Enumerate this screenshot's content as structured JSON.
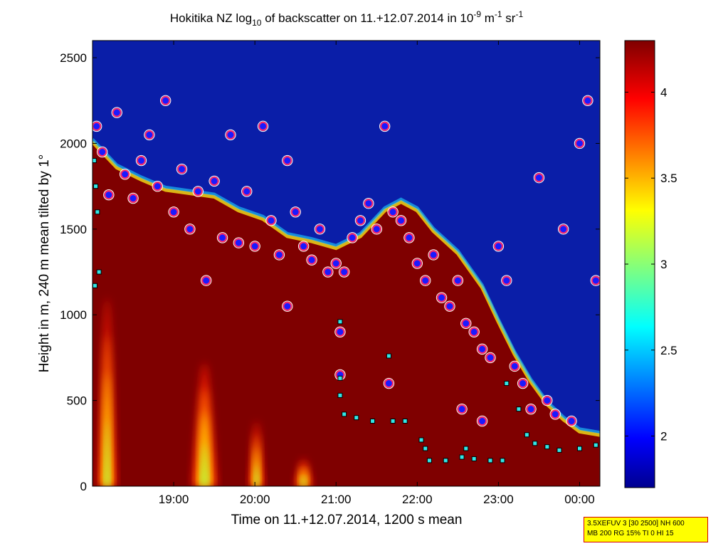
{
  "chart_data": {
    "type": "heatmap",
    "title_parts": {
      "pre": "Hokitika NZ log",
      "sub": "10",
      "mid": " of backscatter on 11.+12.07.2014 in 10",
      "sup1": "-9",
      "mid2": " m",
      "sup2": "-1",
      "mid3": " sr",
      "sup3": "-1"
    },
    "xlabel": "Time on 11.+12.07.2014, 1200 s mean",
    "ylabel": "Height in m, 240 m mean tilted by 1°",
    "x_unit": "hours since 11.07.2014 00:00",
    "xlim": [
      18.0,
      24.25
    ],
    "ylim": [
      0,
      2600
    ],
    "x_ticks": [
      {
        "x": 19.0,
        "label": "19:00"
      },
      {
        "x": 20.0,
        "label": "20:00"
      },
      {
        "x": 21.0,
        "label": "21:00"
      },
      {
        "x": 22.0,
        "label": "22:00"
      },
      {
        "x": 23.0,
        "label": "23:00"
      },
      {
        "x": 24.0,
        "label": "00:00"
      }
    ],
    "y_ticks": [
      {
        "y": 0,
        "label": "0"
      },
      {
        "y": 500,
        "label": "500"
      },
      {
        "y": 1000,
        "label": "1000"
      },
      {
        "y": 1500,
        "label": "1500"
      },
      {
        "y": 2000,
        "label": "2000"
      },
      {
        "y": 2500,
        "label": "2500"
      }
    ],
    "colorbar": {
      "min": 1.7,
      "max": 4.3,
      "ticks": [
        {
          "v": 2,
          "label": "2"
        },
        {
          "v": 2.5,
          "label": "2.5"
        },
        {
          "v": 3,
          "label": "3"
        },
        {
          "v": 3.5,
          "label": "3.5"
        },
        {
          "v": 4,
          "label": "4"
        }
      ],
      "colormap": "jet"
    },
    "cloud_top": [
      [
        18.0,
        2000
      ],
      [
        18.3,
        1850
      ],
      [
        18.6,
        1780
      ],
      [
        18.9,
        1720
      ],
      [
        19.2,
        1700
      ],
      [
        19.5,
        1680
      ],
      [
        19.8,
        1600
      ],
      [
        20.1,
        1550
      ],
      [
        20.4,
        1450
      ],
      [
        20.7,
        1420
      ],
      [
        21.0,
        1380
      ],
      [
        21.3,
        1450
      ],
      [
        21.6,
        1600
      ],
      [
        21.8,
        1650
      ],
      [
        22.0,
        1600
      ],
      [
        22.2,
        1480
      ],
      [
        22.5,
        1350
      ],
      [
        22.8,
        1150
      ],
      [
        23.0,
        950
      ],
      [
        23.2,
        760
      ],
      [
        23.4,
        600
      ],
      [
        23.6,
        470
      ],
      [
        23.8,
        380
      ],
      [
        24.0,
        310
      ],
      [
        24.25,
        290
      ]
    ],
    "aerosol_plumes": [
      {
        "x": 18.18,
        "peak": 1100,
        "width": 0.12
      },
      {
        "x": 19.38,
        "peak": 720,
        "width": 0.16
      },
      {
        "x": 20.02,
        "peak": 380,
        "width": 0.1
      },
      {
        "x": 20.6,
        "peak": 160,
        "width": 0.12
      }
    ],
    "series": [
      {
        "marker": "circle",
        "points": [
          [
            18.05,
            2100
          ],
          [
            18.12,
            1950
          ],
          [
            18.2,
            1700
          ],
          [
            18.3,
            2180
          ],
          [
            18.4,
            1820
          ],
          [
            18.5,
            1680
          ],
          [
            18.6,
            1900
          ],
          [
            18.7,
            2050
          ],
          [
            18.8,
            1750
          ],
          [
            18.9,
            2250
          ],
          [
            19.0,
            1600
          ],
          [
            19.1,
            1850
          ],
          [
            19.2,
            1500
          ],
          [
            19.3,
            1720
          ],
          [
            19.4,
            1200
          ],
          [
            19.5,
            1780
          ],
          [
            19.6,
            1450
          ],
          [
            19.7,
            2050
          ],
          [
            19.8,
            1420
          ],
          [
            19.9,
            1720
          ],
          [
            20.0,
            1400
          ],
          [
            20.1,
            2100
          ],
          [
            20.2,
            1550
          ],
          [
            20.3,
            1350
          ],
          [
            20.4,
            1900
          ],
          [
            20.5,
            1600
          ],
          [
            20.6,
            1400
          ],
          [
            20.7,
            1320
          ],
          [
            20.8,
            1500
          ],
          [
            20.9,
            1250
          ],
          [
            21.0,
            1300
          ],
          [
            21.1,
            1250
          ],
          [
            21.2,
            1450
          ],
          [
            21.3,
            1550
          ],
          [
            21.4,
            1650
          ],
          [
            21.5,
            1500
          ],
          [
            21.6,
            2100
          ],
          [
            21.7,
            1600
          ],
          [
            21.8,
            1550
          ],
          [
            21.9,
            1450
          ],
          [
            22.0,
            1300
          ],
          [
            22.1,
            1200
          ],
          [
            22.2,
            1350
          ],
          [
            22.3,
            1100
          ],
          [
            22.4,
            1050
          ],
          [
            22.5,
            1200
          ],
          [
            22.6,
            950
          ],
          [
            22.7,
            900
          ],
          [
            22.8,
            800
          ],
          [
            22.9,
            750
          ],
          [
            23.0,
            1400
          ],
          [
            23.1,
            1200
          ],
          [
            23.2,
            700
          ],
          [
            23.3,
            600
          ],
          [
            23.4,
            450
          ],
          [
            23.5,
            1800
          ],
          [
            23.6,
            500
          ],
          [
            23.7,
            420
          ],
          [
            23.8,
            1500
          ],
          [
            23.9,
            380
          ],
          [
            24.0,
            2000
          ],
          [
            24.1,
            2250
          ],
          [
            24.2,
            1200
          ],
          [
            21.05,
            900
          ],
          [
            20.4,
            1050
          ],
          [
            22.8,
            380
          ],
          [
            22.55,
            450
          ],
          [
            21.65,
            600
          ],
          [
            21.05,
            650
          ]
        ]
      },
      {
        "marker": "square",
        "points": [
          [
            18.02,
            1900
          ],
          [
            18.04,
            1750
          ],
          [
            18.06,
            1600
          ],
          [
            18.03,
            1170
          ],
          [
            18.08,
            1250
          ],
          [
            21.05,
            960
          ],
          [
            21.05,
            630
          ],
          [
            21.05,
            530
          ],
          [
            21.1,
            420
          ],
          [
            21.25,
            400
          ],
          [
            21.45,
            380
          ],
          [
            21.7,
            380
          ],
          [
            21.85,
            380
          ],
          [
            21.65,
            760
          ],
          [
            22.05,
            270
          ],
          [
            22.1,
            220
          ],
          [
            22.15,
            150
          ],
          [
            22.35,
            150
          ],
          [
            22.55,
            170
          ],
          [
            22.6,
            220
          ],
          [
            22.7,
            160
          ],
          [
            22.9,
            150
          ],
          [
            23.05,
            150
          ],
          [
            23.1,
            600
          ],
          [
            23.25,
            450
          ],
          [
            23.35,
            300
          ],
          [
            23.45,
            250
          ],
          [
            23.6,
            230
          ],
          [
            23.75,
            210
          ],
          [
            24.0,
            220
          ],
          [
            24.2,
            240
          ]
        ]
      }
    ],
    "legend": "none",
    "grid": false
  },
  "info_box": {
    "line1": "3.5XEFUV 3 [30 2500] NH 600",
    "line2": "MB 200 RG 15% TI 0 HI 15"
  }
}
